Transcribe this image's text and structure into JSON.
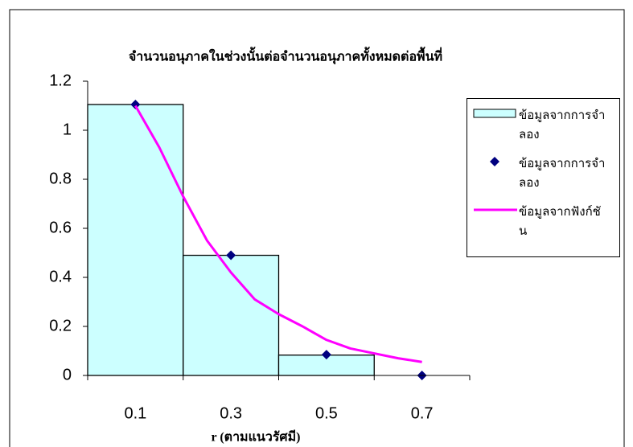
{
  "chart_data": {
    "type": "combo",
    "title": "จำนวนอนุภาคในช่วงนั้นต่อจำนวนอนุภาคทั้งหมดต่อพื้นที่",
    "x_label": "r (ตามแนวรัศมี)",
    "xlim": [
      0,
      0.8
    ],
    "xticks": [
      0.1,
      0.3,
      0.5,
      0.7
    ],
    "ylim": [
      0,
      1.2
    ],
    "yticks": [
      0,
      0.2,
      0.4,
      0.6,
      0.8,
      1,
      1.2
    ],
    "series": [
      {
        "name": "ข้อมูลจากการจำลอง",
        "type": "histogram",
        "color": "#ccffff",
        "bins": [
          0,
          0.2,
          0.4,
          0.6,
          0.8
        ],
        "values": [
          1.105,
          0.49,
          0.083,
          0
        ]
      },
      {
        "name": "ข้อมูลจากการจำลอง",
        "type": "scatter",
        "color": "#000080",
        "x": [
          0.1,
          0.3,
          0.5,
          0.7
        ],
        "values": [
          1.105,
          0.49,
          0.085,
          0
        ]
      },
      {
        "name": "ข้อมูลจากฟังก์ชัน",
        "type": "line",
        "color": "#ff00ff",
        "x": [
          0.1,
          0.15,
          0.2,
          0.25,
          0.3,
          0.35,
          0.4,
          0.45,
          0.5,
          0.55,
          0.6,
          0.65,
          0.7
        ],
        "values": [
          1.1,
          0.93,
          0.73,
          0.55,
          0.42,
          0.31,
          0.25,
          0.2,
          0.145,
          0.11,
          0.09,
          0.07,
          0.055
        ]
      }
    ]
  }
}
